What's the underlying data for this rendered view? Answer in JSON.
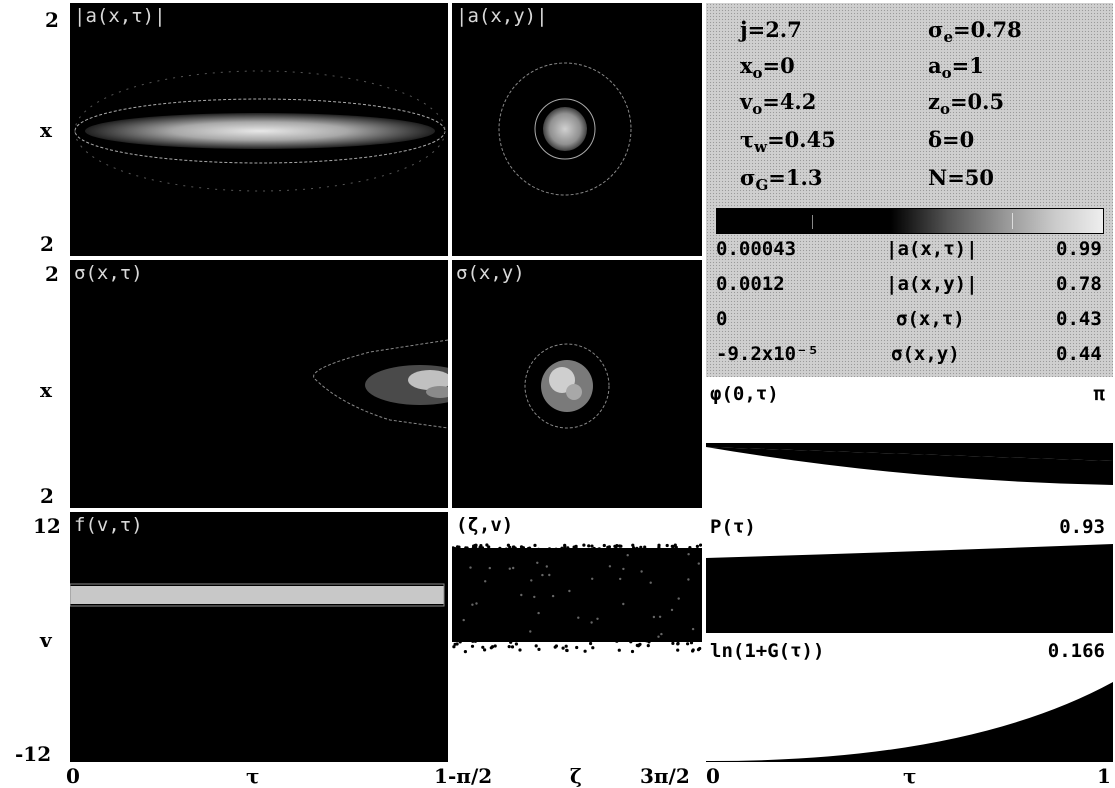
{
  "panels": {
    "a_xt": "|a(x,τ)|",
    "a_xy": "|a(x,y)|",
    "s_xt": "σ(x,τ)",
    "s_xy": "σ(x,y)",
    "f_vt": "f(v,τ)",
    "zeta_v": "(ζ,v)"
  },
  "axes": {
    "row1": {
      "top": "2",
      "mid": "x",
      "bottom": "2"
    },
    "row2": {
      "top": "2",
      "mid": "x",
      "bottom": "2"
    },
    "row3": {
      "top": "12",
      "mid": "v",
      "bottom": "-12"
    },
    "x_left": {
      "min": "0",
      "label": "τ",
      "max": "1"
    },
    "x_mid": {
      "min": "-π/2",
      "label": "ζ",
      "max": "3π/2"
    },
    "x_right": {
      "min": "0",
      "label": "τ",
      "max": "1"
    }
  },
  "params": {
    "j": "j=2.7",
    "sigma_e": {
      "sym": "σ",
      "sub": "e",
      "val": "=0.78"
    },
    "x0": {
      "sym": "x",
      "sub": "o",
      "val": "=0"
    },
    "a0": {
      "sym": "a",
      "sub": "o",
      "val": "=1"
    },
    "v0": {
      "sym": "v",
      "sub": "o",
      "val": "=4.2"
    },
    "z0": {
      "sym": "z",
      "sub": "o",
      "val": "=0.5"
    },
    "tw": {
      "sym": "τ",
      "sub": "w",
      "val": "=0.45"
    },
    "delta": "δ=0",
    "sG": {
      "sym": "σ",
      "sub": "G",
      "val": "=1.3"
    },
    "N": "N=50"
  },
  "range_rows": [
    {
      "min": "0.00043",
      "name": "|a(x,τ)|",
      "max": "0.99"
    },
    {
      "min": "0.0012",
      "name": "|a(x,y)|",
      "max": "0.78"
    },
    {
      "min": "0",
      "name": "σ(x,τ)",
      "max": "0.43"
    },
    {
      "min": "-9.2x10⁻⁵",
      "name": "σ(x,y)",
      "max": "0.44"
    }
  ],
  "phi": {
    "label": "φ(0,τ)",
    "value": "π"
  },
  "P": {
    "label": "P(τ)",
    "value": "0.93"
  },
  "G": {
    "label": "ln(1+G(τ))",
    "value": "0.166"
  }
}
